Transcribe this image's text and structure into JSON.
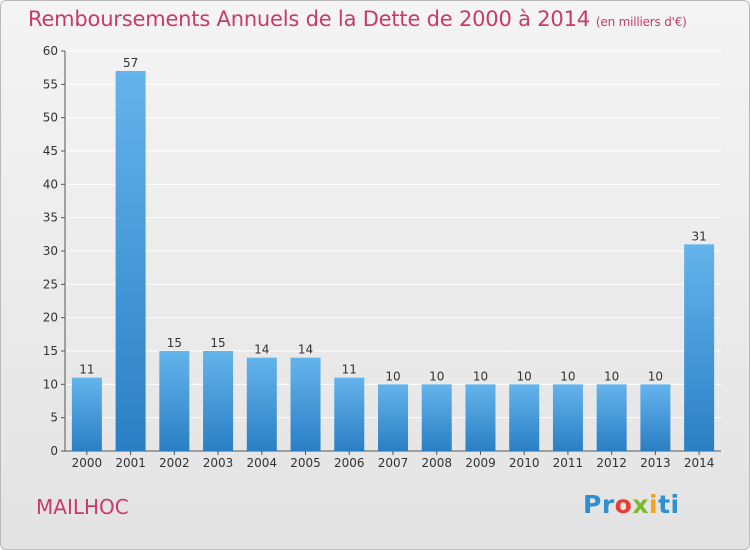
{
  "title": "Remboursements Annuels de la Dette de 2000 à 2014",
  "unit": "(en milliers d'€)",
  "town": "MAILHOC",
  "logo": "Proxiti",
  "colors": {
    "title": "#c83a6a",
    "bar_light": "#64b4ec",
    "bar_dark": "#2a7fc4",
    "grid": "#ffffff",
    "axis": "#555555"
  },
  "chart_data": {
    "type": "bar",
    "categories": [
      "2000",
      "2001",
      "2002",
      "2003",
      "2004",
      "2005",
      "2006",
      "2007",
      "2008",
      "2009",
      "2010",
      "2011",
      "2012",
      "2013",
      "2014"
    ],
    "values": [
      11,
      57,
      15,
      15,
      14,
      14,
      11,
      10,
      10,
      10,
      10,
      10,
      10,
      10,
      31
    ],
    "ylim": [
      0,
      60
    ],
    "yticks": [
      0,
      5,
      10,
      15,
      20,
      25,
      30,
      35,
      40,
      45,
      50,
      55,
      60
    ],
    "grid": true,
    "data_labels": true
  }
}
